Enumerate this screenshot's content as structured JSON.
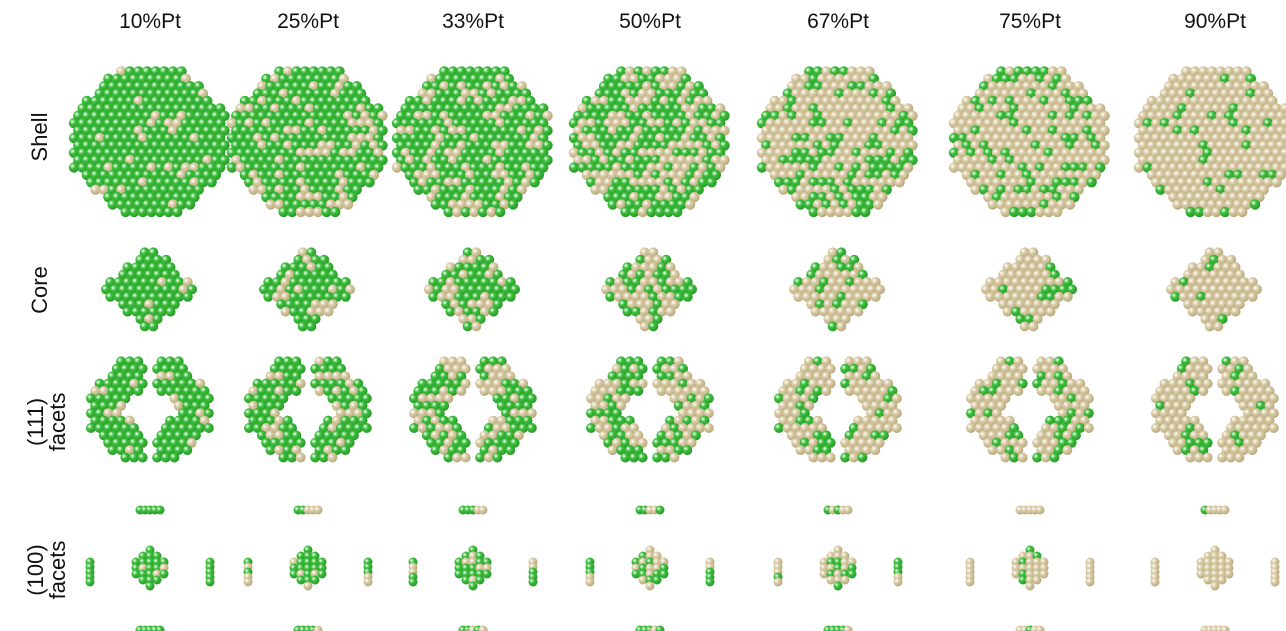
{
  "columns": [
    "10%Pt",
    "25%Pt",
    "33%Pt",
    "50%Pt",
    "67%Pt",
    "75%Pt",
    "90%Pt"
  ],
  "pt_fraction": [
    0.1,
    0.25,
    0.33,
    0.5,
    0.67,
    0.75,
    0.9
  ],
  "rows": [
    {
      "key": "shell",
      "label_lines": [
        "Shell"
      ]
    },
    {
      "key": "core",
      "label_lines": [
        "Core"
      ]
    },
    {
      "key": "facets111",
      "label_lines": [
        "(111)",
        "facets"
      ]
    },
    {
      "key": "facets100",
      "label_lines": [
        "(100)",
        "facets"
      ]
    }
  ],
  "colors": {
    "pt": "#d9cca6",
    "other": "#3cbf3c",
    "pt_edge": "#b8a97e",
    "other_edge": "#2a9a2a"
  }
}
